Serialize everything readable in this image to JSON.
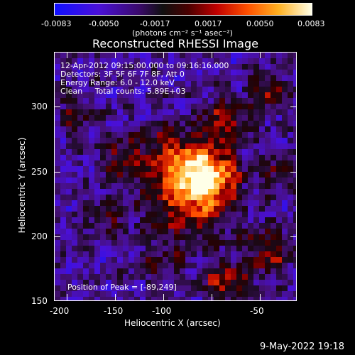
{
  "colorbar": {
    "tick_labels": [
      "-0.0083",
      "-0.0050",
      "-0.0017",
      "0.0017",
      "0.0050",
      "0.0083"
    ],
    "units": "(photons cm⁻² s⁻¹ asec⁻²)"
  },
  "plot": {
    "title": "Reconstructed RHESSI Image",
    "info": {
      "time_range": "12-Apr-2012 09:15:00.000 to 09:16:16.000",
      "detectors": "Detectors: 3F 5F 6F 7F 8F, Att 0",
      "energy_range": "Energy Range: 6.0 - 12.0 keV",
      "clean_counts": "Clean     Total counts: 5.89E+03"
    },
    "peak_label": "Position of Peak = [-89,249]",
    "x_axis": {
      "label": "Heliocentric X (arcsec)",
      "ticks": [
        "-200",
        "-150",
        "-100",
        "-50"
      ]
    },
    "y_axis": {
      "label": "Heliocentric Y (arcsec)",
      "ticks": [
        "150",
        "200",
        "250",
        "300"
      ]
    }
  },
  "timestamp": "9-May-2022 19:18"
}
